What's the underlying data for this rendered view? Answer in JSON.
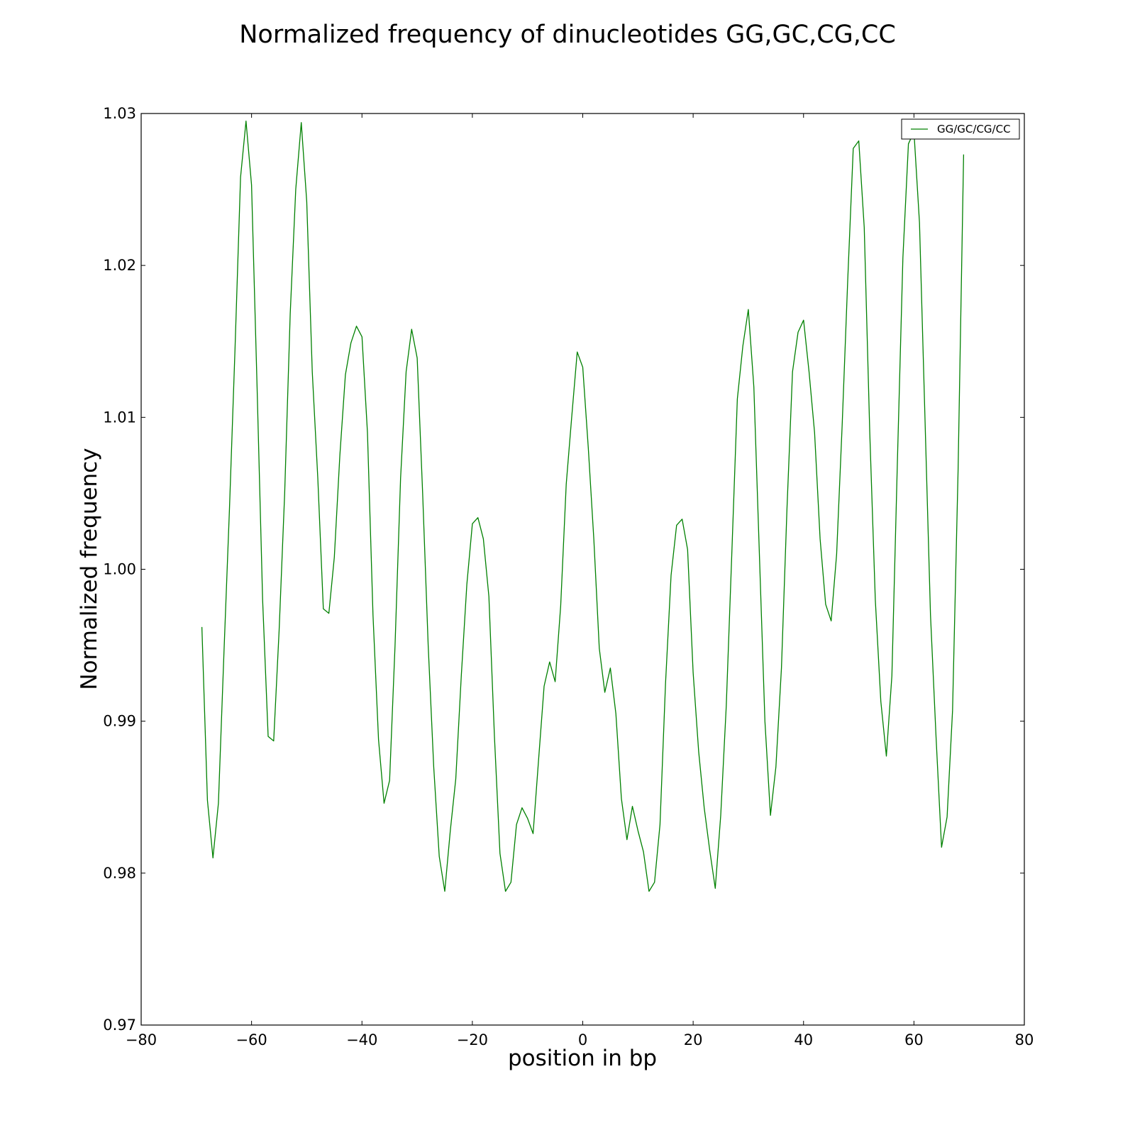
{
  "chart_data": {
    "type": "line",
    "title": "Normalized frequency of dinucleotides GG,GC,CG,CC",
    "xlabel": "position in bp",
    "ylabel": "Normalized frequency",
    "xlim": [
      -80,
      80
    ],
    "ylim": [
      0.97,
      1.03
    ],
    "xticks": [
      -80,
      -60,
      -40,
      -20,
      0,
      20,
      40,
      60,
      80
    ],
    "xtick_labels": [
      "−80",
      "−60",
      "−40",
      "−20",
      "0",
      "20",
      "40",
      "60",
      "80"
    ],
    "yticks": [
      0.97,
      0.98,
      0.99,
      1.0,
      1.01,
      1.02,
      1.03
    ],
    "ytick_labels": [
      "0.97",
      "0.98",
      "0.99",
      "1.00",
      "1.01",
      "1.02",
      "1.03"
    ],
    "grid": false,
    "legend": "top-right",
    "series": [
      {
        "name": "GG/GC/CG/CC",
        "color": "#008000",
        "x": [
          -69,
          -68,
          -67,
          -66,
          -65,
          -64,
          -63,
          -62,
          -61,
          -60,
          -59,
          -58,
          -57,
          -56,
          -55,
          -54,
          -53,
          -52,
          -51,
          -50,
          -49,
          -48,
          -47,
          -46,
          -45,
          -44,
          -43,
          -42,
          -41,
          -40,
          -39,
          -38,
          -37,
          -36,
          -35,
          -34,
          -33,
          -32,
          -31,
          -30,
          -29,
          -28,
          -27,
          -26,
          -25,
          -24,
          -23,
          -22,
          -21,
          -20,
          -19,
          -18,
          -17,
          -16,
          -15,
          -14,
          -13,
          -12,
          -11,
          -10,
          -9,
          -8,
          -7,
          -6,
          -5,
          -4,
          -3,
          -2,
          -1,
          0,
          1,
          2,
          3,
          4,
          5,
          6,
          7,
          8,
          9,
          10,
          11,
          12,
          13,
          14,
          15,
          16,
          17,
          18,
          19,
          20,
          21,
          22,
          23,
          24,
          25,
          26,
          27,
          28,
          29,
          30,
          31,
          32,
          33,
          34,
          35,
          36,
          37,
          38,
          39,
          40,
          41,
          42,
          43,
          44,
          45,
          46,
          47,
          48,
          49,
          50,
          51,
          52,
          53,
          54,
          55,
          56,
          57,
          58,
          59,
          60,
          61,
          62,
          63,
          64,
          65,
          66,
          67,
          68,
          69
        ],
        "y": [
          0.9962,
          0.9848,
          0.981,
          0.9846,
          0.9945,
          1.004,
          1.0145,
          1.0258,
          1.0295,
          1.0253,
          1.012,
          0.998,
          0.989,
          0.9887,
          0.996,
          1.005,
          1.0168,
          1.025,
          1.0294,
          1.0242,
          1.013,
          1.006,
          0.9974,
          0.9971,
          1.0008,
          1.0075,
          1.0128,
          1.0149,
          1.016,
          1.0153,
          1.009,
          0.997,
          0.9888,
          0.9846,
          0.9861,
          0.995,
          1.006,
          1.013,
          1.0158,
          1.0139,
          1.005,
          0.995,
          0.987,
          0.9811,
          0.9788,
          0.9828,
          0.9862,
          0.993,
          0.999,
          1.003,
          1.0034,
          1.002,
          0.9982,
          0.989,
          0.9813,
          0.9788,
          0.9794,
          0.9832,
          0.9843,
          0.9836,
          0.9826,
          0.9875,
          0.9923,
          0.9939,
          0.9926,
          0.9976,
          1.0056,
          1.01,
          1.0143,
          1.0133,
          1.008,
          1.002,
          0.9948,
          0.9919,
          0.9935,
          0.9905,
          0.9849,
          0.9822,
          0.9844,
          0.9828,
          0.9814,
          0.9788,
          0.9794,
          0.9832,
          0.9925,
          0.9996,
          1.0029,
          1.0033,
          1.0013,
          0.9932,
          0.988,
          0.9843,
          0.9815,
          0.979,
          0.9838,
          0.991,
          1.001,
          1.0112,
          1.0147,
          1.0171,
          1.012,
          1.001,
          0.99,
          0.9838,
          0.987,
          0.9935,
          1.004,
          1.013,
          1.0156,
          1.0164,
          1.013,
          1.009,
          1.002,
          0.9977,
          0.9966,
          1.001,
          1.0095,
          1.019,
          1.0277,
          1.0282,
          1.0225,
          1.009,
          0.998,
          0.9913,
          0.9877,
          0.993,
          1.007,
          1.0205,
          1.028,
          1.0288,
          1.0228,
          1.01,
          0.997,
          0.989,
          0.9817,
          0.9837,
          0.9907,
          1.0065,
          1.0273
        ]
      }
    ]
  }
}
